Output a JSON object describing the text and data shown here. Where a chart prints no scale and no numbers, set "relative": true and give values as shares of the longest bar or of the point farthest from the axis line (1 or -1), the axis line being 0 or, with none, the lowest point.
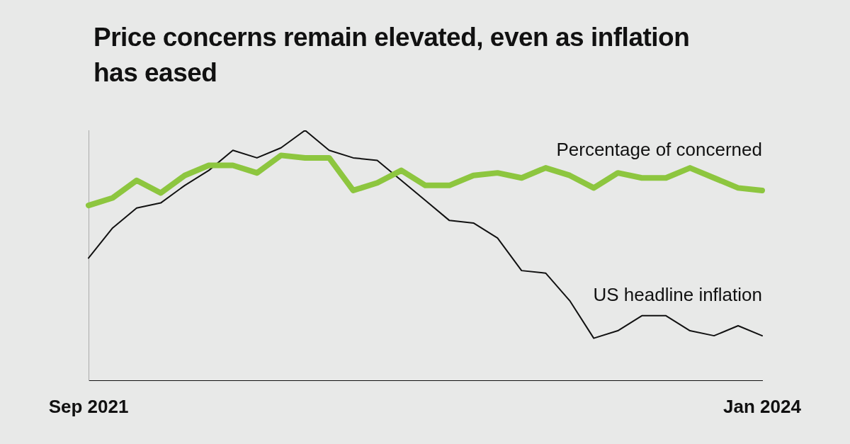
{
  "chart_data": {
    "type": "line",
    "title": "Price concerns remain elevated, even as inflation has eased",
    "relative": true,
    "legend": false,
    "grid": false,
    "marker": "none",
    "categories": [
      "Sep 2021",
      null,
      null,
      null,
      null,
      null,
      null,
      null,
      null,
      null,
      null,
      null,
      null,
      null,
      null,
      null,
      null,
      null,
      null,
      null,
      null,
      null,
      null,
      null,
      null,
      null,
      null,
      null,
      "Jan 2024"
    ],
    "series": [
      {
        "name": "Percentage of concerned",
        "color": "#8dc63f",
        "values": [
          0.7,
          0.73,
          0.8,
          0.75,
          0.82,
          0.86,
          0.86,
          0.83,
          0.9,
          0.89,
          0.89,
          0.76,
          0.79,
          0.84,
          0.78,
          0.78,
          0.82,
          0.83,
          0.81,
          0.85,
          0.82,
          0.77,
          0.83,
          0.81,
          0.81,
          0.85,
          0.81,
          0.77,
          0.76
        ]
      },
      {
        "name": "US headline inflation",
        "color": "#111111",
        "values": [
          0.49,
          0.61,
          0.69,
          0.71,
          0.78,
          0.84,
          0.92,
          0.89,
          0.93,
          1,
          0.92,
          0.89,
          0.88,
          0.8,
          0.72,
          0.64,
          0.63,
          0.57,
          0.44,
          0.43,
          0.32,
          0.17,
          0.2,
          0.26,
          0.26,
          0.2,
          0.18,
          0.22,
          0.18
        ]
      }
    ]
  }
}
